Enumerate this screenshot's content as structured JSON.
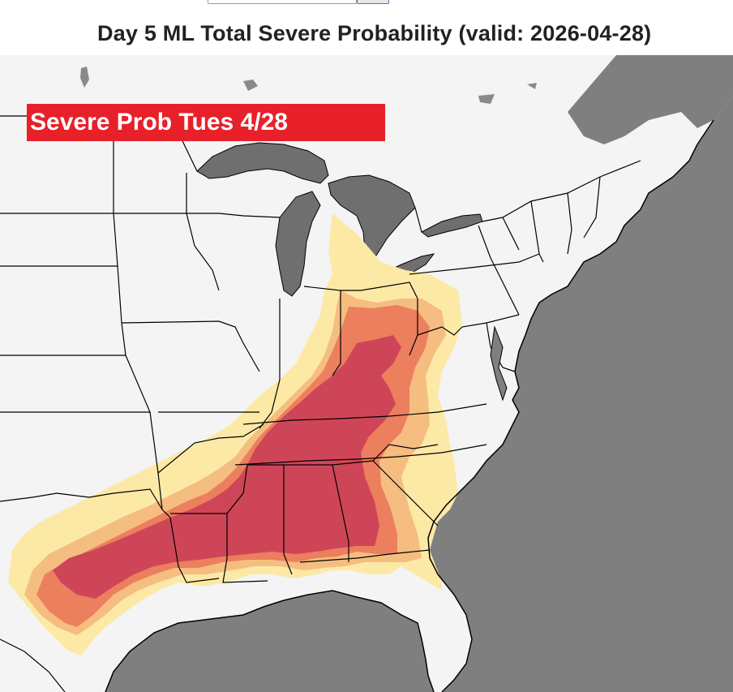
{
  "title": "Day 5 ML Total Severe Probability (valid: 2026-04-28)",
  "badge": {
    "label": "Severe Prob Tues 4/28",
    "color": "#e8202a"
  },
  "map": {
    "region": "Eastern United States",
    "water_color": "#7f7f7f",
    "land_color": "#f4f4f4",
    "border_color": "#000000"
  },
  "probability_shading": [
    {
      "tier": "lowest",
      "color": "#fce9a6"
    },
    {
      "tier": "low",
      "color": "#f6bd80"
    },
    {
      "tier": "moderate",
      "color": "#ec7f5e"
    },
    {
      "tier": "highest",
      "color": "#cf4558"
    }
  ]
}
